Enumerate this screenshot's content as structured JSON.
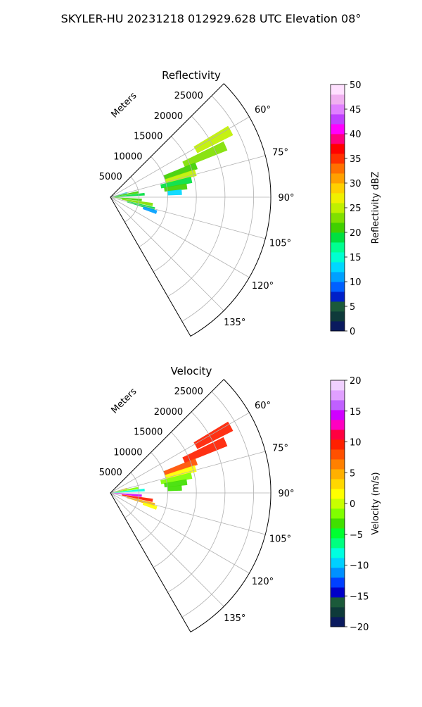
{
  "figure": {
    "suptitle": "SKYLER-HU  20231218  012929.628 UTC Elevation 08°"
  },
  "chart_data": [
    {
      "type": "heatmap",
      "subtype": "polar-sector-ppi",
      "title": "Reflectivity",
      "range_label": "Meters",
      "range_ticks": [
        5000,
        10000,
        15000,
        20000,
        25000
      ],
      "range_tick_labels": [
        "5000",
        "10000",
        "15000",
        "20000",
        "25000"
      ],
      "rlim": [
        0,
        28000
      ],
      "azimuth_ticks": [
        60,
        75,
        90,
        105,
        120,
        135
      ],
      "azimuth_tick_labels": [
        "60°",
        "75°",
        "90°",
        "105°",
        "120°",
        "135°"
      ],
      "azimuth_range": [
        45,
        150
      ],
      "grid": true,
      "colorbar": {
        "label": "Reflectivity dBZ",
        "min": 0,
        "max": 50,
        "ticks": [
          0,
          5,
          10,
          15,
          20,
          25,
          30,
          35,
          40,
          45,
          50
        ],
        "tick_labels": [
          "0",
          "5",
          "10",
          "15",
          "20",
          "25",
          "30",
          "35",
          "40",
          "45",
          "50"
        ],
        "colors": [
          "#0a1a5e",
          "#0e3a3a",
          "#1b5a3a",
          "#0020c8",
          "#0060ff",
          "#00a0ff",
          "#00d8ff",
          "#00ffd0",
          "#00ff90",
          "#00e040",
          "#40d000",
          "#80e000",
          "#c0f000",
          "#f0f000",
          "#ffd000",
          "#ffa000",
          "#ff7000",
          "#ff3000",
          "#ff0000",
          "#ff0080",
          "#ff00ff",
          "#c040ff",
          "#e080ff",
          "#f0b0f0",
          "#ffe0ff"
        ]
      },
      "cells": [
        {
          "az": 61,
          "r": [
            17000,
            24000
          ],
          "value": 24
        },
        {
          "az": 66,
          "r": [
            14000,
            22000
          ],
          "value": 22
        },
        {
          "az": 70,
          "r": [
            10000,
            16000
          ],
          "value": 20
        },
        {
          "az": 74,
          "r": [
            10000,
            15500
          ],
          "value": 24
        },
        {
          "az": 78,
          "r": [
            9000,
            14500
          ],
          "value": 18
        },
        {
          "az": 82,
          "r": [
            9500,
            13500
          ],
          "value": 20
        },
        {
          "az": 86,
          "r": [
            10000,
            12500
          ],
          "value": 12
        },
        {
          "az": 75,
          "r": [
            0,
            3000
          ],
          "value": 12
        },
        {
          "az": 80,
          "r": [
            0,
            5000
          ],
          "value": 20
        },
        {
          "az": 85,
          "r": [
            0,
            6000
          ],
          "value": 18
        },
        {
          "az": 95,
          "r": [
            0,
            5500
          ],
          "value": 20
        },
        {
          "az": 100,
          "r": [
            2000,
            7500
          ],
          "value": 22
        },
        {
          "az": 105,
          "r": [
            3000,
            8000
          ],
          "value": 18
        },
        {
          "az": 108,
          "r": [
            6000,
            8500
          ],
          "value": 10
        }
      ]
    },
    {
      "type": "heatmap",
      "subtype": "polar-sector-ppi",
      "title": "Velocity",
      "range_label": "Meters",
      "range_ticks": [
        5000,
        10000,
        15000,
        20000,
        25000
      ],
      "range_tick_labels": [
        "5000",
        "10000",
        "15000",
        "20000",
        "25000"
      ],
      "rlim": [
        0,
        28000
      ],
      "azimuth_ticks": [
        60,
        75,
        90,
        105,
        120,
        135
      ],
      "azimuth_tick_labels": [
        "60°",
        "75°",
        "90°",
        "105°",
        "120°",
        "135°"
      ],
      "azimuth_range": [
        45,
        150
      ],
      "grid": true,
      "colorbar": {
        "label": "Velocity (m/s)",
        "min": -20,
        "max": 20,
        "ticks": [
          -20,
          -15,
          -10,
          -5,
          0,
          5,
          10,
          15,
          20
        ],
        "tick_labels": [
          "−20",
          "−15",
          "−10",
          "−5",
          "0",
          "5",
          "10",
          "15",
          "20"
        ],
        "colors": [
          "#0a1a5e",
          "#0e3a3a",
          "#1b5a3a",
          "#0000c8",
          "#0040ff",
          "#0090ff",
          "#00d0ff",
          "#00ffe0",
          "#00ff80",
          "#00ff30",
          "#40e000",
          "#80ff00",
          "#c8ff00",
          "#ffff00",
          "#ffd800",
          "#ffb000",
          "#ff8000",
          "#ff5000",
          "#ff2000",
          "#ff0040",
          "#ff00c0",
          "#d000ff",
          "#c060ff",
          "#e0a0ff",
          "#f0d0ff"
        ]
      },
      "cells": [
        {
          "az": 61,
          "r": [
            17000,
            24000
          ],
          "value": 10
        },
        {
          "az": 66,
          "r": [
            14000,
            22000
          ],
          "value": 9
        },
        {
          "az": 70,
          "r": [
            10000,
            16000
          ],
          "value": 8
        },
        {
          "az": 74,
          "r": [
            10000,
            15500
          ],
          "value": 2
        },
        {
          "az": 78,
          "r": [
            9000,
            14500
          ],
          "value": -2
        },
        {
          "az": 82,
          "r": [
            9500,
            13500
          ],
          "value": -3
        },
        {
          "az": 86,
          "r": [
            10000,
            12500
          ],
          "value": -4
        },
        {
          "az": 75,
          "r": [
            0,
            3000
          ],
          "value": 3
        },
        {
          "az": 80,
          "r": [
            0,
            5000
          ],
          "value": -2
        },
        {
          "az": 85,
          "r": [
            0,
            6000
          ],
          "value": -8
        },
        {
          "az": 95,
          "r": [
            0,
            5500
          ],
          "value": 14
        },
        {
          "az": 100,
          "r": [
            2000,
            7500
          ],
          "value": 10
        },
        {
          "az": 105,
          "r": [
            3000,
            8000
          ],
          "value": 4
        },
        {
          "az": 108,
          "r": [
            6000,
            8500
          ],
          "value": 1
        }
      ]
    }
  ]
}
